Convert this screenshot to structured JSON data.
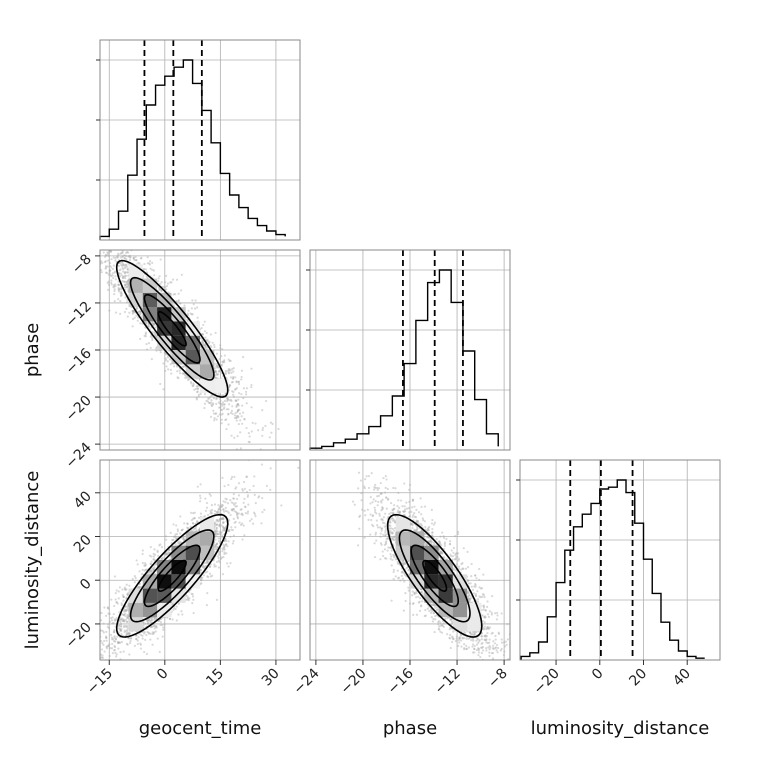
{
  "chart_data": {
    "type": "corner",
    "parameters": [
      "geocent_time",
      "phase",
      "luminosity_distance"
    ],
    "axis_labels": {
      "geocent_time": "geocent_time",
      "phase": "phase",
      "luminosity_distance": "luminosity_distance"
    },
    "ranges": {
      "geocent_time": [
        -17.5,
        36.5
      ],
      "phase": [
        -24.5,
        -7.5
      ],
      "luminosity_distance": [
        -36.5,
        55
      ]
    },
    "ticks": {
      "geocent_time": {
        "values": [
          -15,
          0,
          15,
          30
        ],
        "labels": [
          "−15",
          "0",
          "15",
          "30"
        ]
      },
      "phase": {
        "values": [
          -24,
          -20,
          -16,
          -12,
          -8
        ],
        "labels": [
          "−24",
          "−20",
          "−16",
          "−12",
          "−8"
        ]
      },
      "luminosity_distance": {
        "values": [
          -20,
          0,
          20,
          40
        ],
        "labels": [
          "−20",
          "0",
          "20",
          "40"
        ]
      }
    },
    "grid": true,
    "histograms": {
      "geocent_time": {
        "bin_edges": [
          -17.5,
          -15,
          -12.5,
          -10,
          -7.5,
          -5,
          -2.5,
          0,
          2.5,
          5,
          7.5,
          10,
          12.5,
          15,
          17.5,
          20,
          22.5,
          25,
          27.5,
          30,
          32.5
        ],
        "counts": [
          0.02,
          0.06,
          0.16,
          0.36,
          0.56,
          0.75,
          0.86,
          0.91,
          0.96,
          1.0,
          0.87,
          0.72,
          0.54,
          0.37,
          0.25,
          0.18,
          0.12,
          0.08,
          0.05,
          0.03,
          0.02
        ],
        "quantiles": [
          -5.5,
          2.3,
          10.0
        ]
      },
      "phase": {
        "bin_edges": [
          -24.5,
          -23.5,
          -22.5,
          -21.5,
          -20.5,
          -19.5,
          -18.5,
          -17.5,
          -16.5,
          -15.5,
          -14.5,
          -13.5,
          -12.5,
          -11.5,
          -10.5,
          -9.5,
          -8.5
        ],
        "counts": [
          0.01,
          0.02,
          0.04,
          0.06,
          0.09,
          0.13,
          0.19,
          0.3,
          0.48,
          0.72,
          0.93,
          1.0,
          0.82,
          0.55,
          0.28,
          0.09,
          0.02
        ],
        "quantiles": [
          -16.6,
          -13.9,
          -11.5
        ]
      },
      "luminosity_distance": {
        "bin_edges": [
          -36,
          -32,
          -28,
          -24,
          -20,
          -16,
          -12,
          -8,
          -4,
          0,
          4,
          8,
          12,
          16,
          20,
          24,
          28,
          32,
          36,
          40,
          44,
          48
        ],
        "counts": [
          0.02,
          0.04,
          0.1,
          0.24,
          0.43,
          0.61,
          0.74,
          0.81,
          0.87,
          0.95,
          0.96,
          1.0,
          0.93,
          0.76,
          0.56,
          0.37,
          0.21,
          0.11,
          0.05,
          0.02,
          0.01
        ],
        "quantiles": [
          -13.5,
          0.5,
          15.0
        ]
      }
    },
    "contours": {
      "phase|geocent_time": {
        "mean": [
          2,
          -14.2
        ],
        "sd": [
          7.5,
          2.9
        ],
        "corr": -0.9,
        "sigma_levels": [
          0.5,
          1,
          1.5,
          2
        ],
        "sample_count": 3000,
        "sample_sd_scale": 1.15
      },
      "luminosity_distance|geocent_time": {
        "mean": [
          2,
          2
        ],
        "sd": [
          7.5,
          14.0
        ],
        "corr": 0.86,
        "sigma_levels": [
          0.5,
          1,
          1.5,
          2
        ],
        "sample_count": 3000,
        "sample_sd_scale": 1.15
      },
      "luminosity_distance|phase": {
        "mean": [
          -13.9,
          2
        ],
        "sd": [
          2.0,
          14.0
        ],
        "corr": -0.82,
        "sigma_levels": [
          0.5,
          1,
          1.5,
          2
        ],
        "sample_count": 3000,
        "sample_sd_scale": 1.15
      }
    },
    "colors": {
      "line": "#000000",
      "grid": "#b0b0b0",
      "sample": "#aaaaaa",
      "frame": "#888888",
      "density_high": "#000000",
      "density_low": "#f2f2f2"
    }
  }
}
